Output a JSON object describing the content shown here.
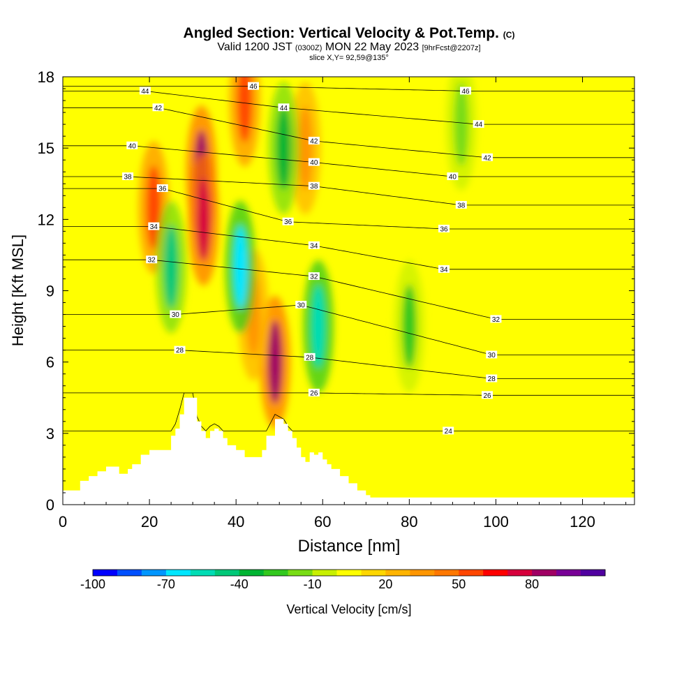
{
  "title": {
    "main": "Angled Section: Vertical Velocity & Pot.Temp.",
    "main_unit": "(C)",
    "valid_prefix": "Valid 1200 JST",
    "valid_zulu": "(0300Z)",
    "valid_date": "MON 22 May 2023",
    "forecast": "[9hrFcst@2207z]",
    "slice": "slice X,Y= 92,59@135°"
  },
  "colors": {
    "terrain": "#ffffff",
    "contour": "#000000",
    "background": "#ffff00"
  },
  "chart_data": {
    "type": "heatmap",
    "xlabel": "Distance [nm]",
    "ylabel": "Height [Kft MSL]",
    "xlim": [
      0,
      132
    ],
    "ylim": [
      0,
      18
    ],
    "x_ticks": [
      0,
      20,
      40,
      60,
      80,
      100,
      120
    ],
    "y_ticks": [
      0,
      3,
      6,
      9,
      12,
      15,
      18
    ],
    "colorbar": {
      "label": "Vertical Velocity [cm/s]",
      "tick_labels": [
        "-100",
        "-70",
        "-40",
        "-10",
        "20",
        "50",
        "80"
      ],
      "tick_values": [
        -100,
        -70,
        -40,
        -10,
        20,
        50,
        80
      ],
      "colors": [
        "#0000ff",
        "#0050ff",
        "#0096ff",
        "#00e6ff",
        "#00dcb4",
        "#00c878",
        "#00b432",
        "#32c81e",
        "#78dc14",
        "#c8f000",
        "#ffff00",
        "#ffd700",
        "#ffb400",
        "#ff9600",
        "#ff7800",
        "#ff4600",
        "#ff0000",
        "#d7003c",
        "#a00064",
        "#780096",
        "#5000a0"
      ]
    },
    "velocity_features": [
      {
        "type": "up",
        "x": 21,
        "y": 12.5,
        "value": 50
      },
      {
        "type": "up",
        "x": 32,
        "y": 14,
        "value": 80
      },
      {
        "type": "up",
        "x": 32.5,
        "y": 12,
        "value": 70
      },
      {
        "type": "up",
        "x": 42,
        "y": 17,
        "value": 50
      },
      {
        "type": "up",
        "x": 49,
        "y": 6,
        "value": 80
      },
      {
        "type": "up",
        "x": 44,
        "y": 8,
        "value": 30
      },
      {
        "type": "up",
        "x": 56,
        "y": 15,
        "value": 30
      },
      {
        "type": "down",
        "x": 25,
        "y": 10,
        "value": -50
      },
      {
        "type": "down",
        "x": 41,
        "y": 10,
        "value": -70
      },
      {
        "type": "down",
        "x": 51,
        "y": 15,
        "value": -40
      },
      {
        "type": "down",
        "x": 59,
        "y": 7.5,
        "value": -60
      },
      {
        "type": "down",
        "x": 80,
        "y": 7.5,
        "value": -30
      },
      {
        "type": "down",
        "x": 92,
        "y": 16,
        "value": -25
      }
    ],
    "theta_levels": [
      24,
      26,
      28,
      30,
      32,
      34,
      36,
      38,
      40,
      42,
      44,
      46
    ],
    "theta_labels": [
      {
        "x": 19,
        "y": 17.4,
        "text": "44"
      },
      {
        "x": 22,
        "y": 16.7,
        "text": "42"
      },
      {
        "x": 16,
        "y": 15.1,
        "text": "40"
      },
      {
        "x": 15,
        "y": 13.8,
        "text": "38"
      },
      {
        "x": 23,
        "y": 13.3,
        "text": "36"
      },
      {
        "x": 21,
        "y": 11.7,
        "text": "34"
      },
      {
        "x": 20.5,
        "y": 10.3,
        "text": "32"
      },
      {
        "x": 26,
        "y": 8.0,
        "text": "30"
      },
      {
        "x": 27,
        "y": 6.5,
        "text": "28"
      },
      {
        "x": 44,
        "y": 17.6,
        "text": "46"
      },
      {
        "x": 51,
        "y": 16.7,
        "text": "44"
      },
      {
        "x": 58,
        "y": 15.3,
        "text": "42"
      },
      {
        "x": 58,
        "y": 14.4,
        "text": "40"
      },
      {
        "x": 58,
        "y": 13.4,
        "text": "38"
      },
      {
        "x": 52,
        "y": 11.9,
        "text": "36"
      },
      {
        "x": 58,
        "y": 10.9,
        "text": "34"
      },
      {
        "x": 58,
        "y": 9.6,
        "text": "32"
      },
      {
        "x": 55,
        "y": 8.4,
        "text": "30"
      },
      {
        "x": 57,
        "y": 6.2,
        "text": "28"
      },
      {
        "x": 58,
        "y": 4.7,
        "text": "26"
      },
      {
        "x": 93,
        "y": 17.4,
        "text": "46"
      },
      {
        "x": 96,
        "y": 16.0,
        "text": "44"
      },
      {
        "x": 98,
        "y": 14.6,
        "text": "42"
      },
      {
        "x": 90,
        "y": 13.8,
        "text": "40"
      },
      {
        "x": 92,
        "y": 12.6,
        "text": "38"
      },
      {
        "x": 88,
        "y": 11.6,
        "text": "36"
      },
      {
        "x": 88,
        "y": 9.9,
        "text": "34"
      },
      {
        "x": 100,
        "y": 7.8,
        "text": "32"
      },
      {
        "x": 99,
        "y": 6.3,
        "text": "30"
      },
      {
        "x": 99,
        "y": 5.3,
        "text": "28"
      },
      {
        "x": 98,
        "y": 4.6,
        "text": "26"
      },
      {
        "x": 89,
        "y": 3.1,
        "text": "24"
      }
    ],
    "terrain": [
      [
        0,
        0.6
      ],
      [
        4,
        1.0
      ],
      [
        6,
        1.2
      ],
      [
        8,
        1.4
      ],
      [
        10,
        1.6
      ],
      [
        13,
        1.6
      ],
      [
        13,
        1.3
      ],
      [
        15,
        1.5
      ],
      [
        16,
        1.7
      ],
      [
        18,
        2.1
      ],
      [
        20,
        2.3
      ],
      [
        24,
        2.3
      ],
      [
        25,
        2.9
      ],
      [
        26,
        3.2
      ],
      [
        27,
        3.8
      ],
      [
        28,
        4.5
      ],
      [
        30,
        4.5
      ],
      [
        31,
        3.5
      ],
      [
        32,
        3.1
      ],
      [
        33,
        2.8
      ],
      [
        34,
        3.1
      ],
      [
        35,
        3.2
      ],
      [
        36,
        3.1
      ],
      [
        37,
        2.8
      ],
      [
        38,
        2.5
      ],
      [
        40,
        2.3
      ],
      [
        42,
        2.0
      ],
      [
        45,
        2.0
      ],
      [
        46,
        2.3
      ],
      [
        47,
        2.9
      ],
      [
        49,
        3.6
      ],
      [
        51,
        3.4
      ],
      [
        52,
        3.1
      ],
      [
        53,
        2.8
      ],
      [
        54,
        2.4
      ],
      [
        55,
        2.0
      ],
      [
        56,
        1.8
      ],
      [
        57,
        2.2
      ],
      [
        58,
        2.1
      ],
      [
        59,
        2.2
      ],
      [
        60,
        1.9
      ],
      [
        61,
        1.7
      ],
      [
        62,
        1.5
      ],
      [
        64,
        1.2
      ],
      [
        66,
        0.9
      ],
      [
        68,
        0.6
      ],
      [
        70,
        0.4
      ],
      [
        71,
        0.3
      ],
      [
        132,
        0.3
      ]
    ]
  }
}
